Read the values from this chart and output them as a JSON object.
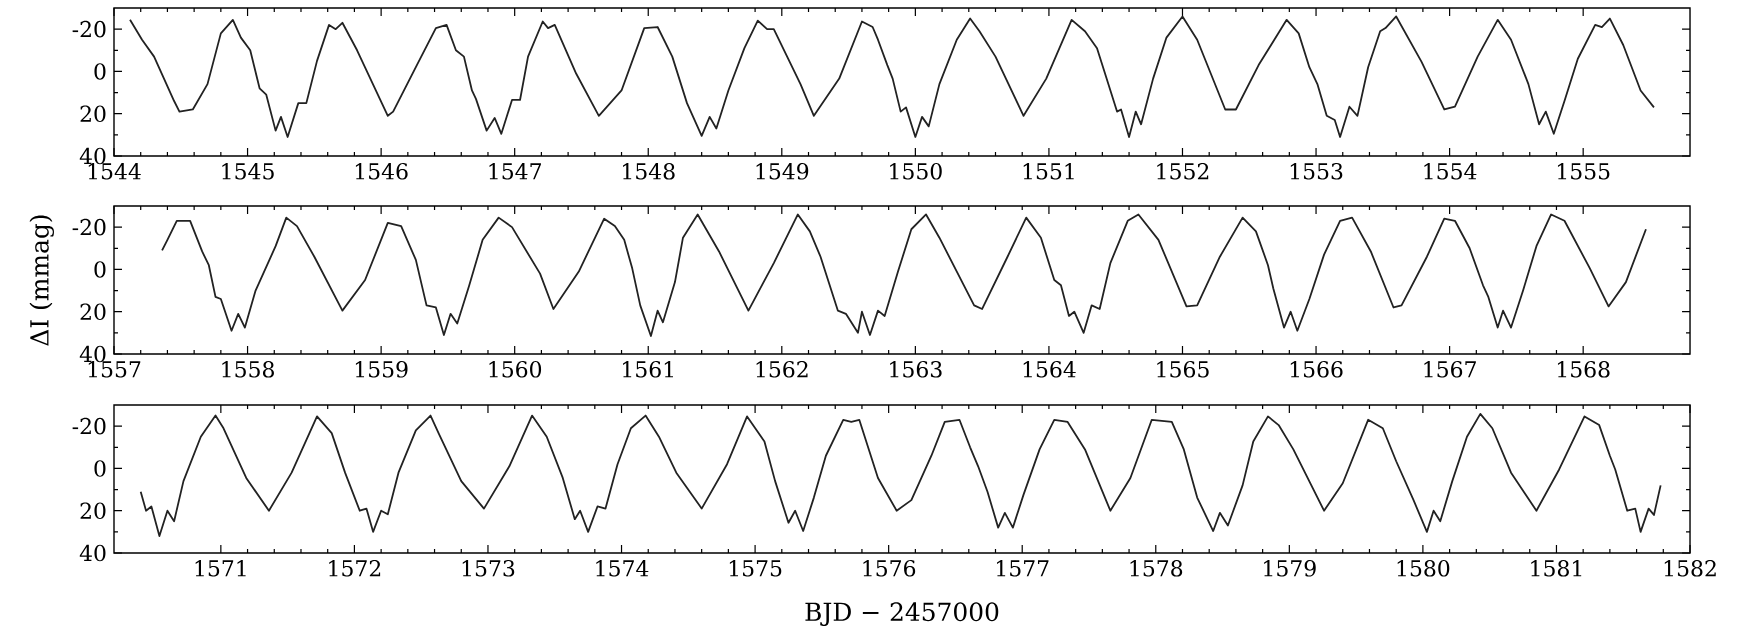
{
  "chart_data": [
    {
      "type": "line",
      "marker": "none",
      "line_style": "solid",
      "xlim": [
        1544,
        1555.8
      ],
      "ylim": [
        40,
        -30
      ],
      "xticks": [
        1544,
        1545,
        1546,
        1547,
        1548,
        1549,
        1550,
        1551,
        1552,
        1553,
        1554,
        1555
      ],
      "yticks": [
        -20,
        0,
        20,
        40
      ],
      "x": [
        1544.12,
        1544.21,
        1544.3,
        1544.45,
        1544.49,
        1544.59,
        1544.7,
        1544.8,
        1544.89,
        1544.95,
        1545.02,
        1545.09,
        1545.14,
        1545.21,
        1545.25,
        1545.3,
        1545.38,
        1545.44,
        1545.52,
        1545.61,
        1545.66,
        1545.71,
        1545.82,
        1546.05,
        1546.09,
        1546.26,
        1546.41,
        1546.49,
        1546.56,
        1546.62,
        1546.68,
        1546.71,
        1546.79,
        1546.85,
        1546.9,
        1546.98,
        1547.04,
        1547.1,
        1547.21,
        1547.25,
        1547.3,
        1547.46,
        1547.63,
        1547.8,
        1547.97,
        1548.07,
        1548.18,
        1548.29,
        1548.4,
        1548.46,
        1548.51,
        1548.6,
        1548.72,
        1548.82,
        1548.89,
        1548.94,
        1549.14,
        1549.24,
        1549.43,
        1549.6,
        1549.68,
        1549.72,
        1549.79,
        1549.83,
        1549.89,
        1549.93,
        1550.0,
        1550.05,
        1550.1,
        1550.18,
        1550.31,
        1550.41,
        1550.48,
        1550.6,
        1550.81,
        1550.98,
        1551.17,
        1551.27,
        1551.36,
        1551.42,
        1551.51,
        1551.54,
        1551.6,
        1551.65,
        1551.69,
        1551.78,
        1551.88,
        1552.0,
        1552.11,
        1552.32,
        1552.4,
        1552.57,
        1552.78,
        1552.87,
        1552.95,
        1553.01,
        1553.08,
        1553.14,
        1553.18,
        1553.25,
        1553.31,
        1553.39,
        1553.48,
        1553.52,
        1553.6,
        1553.79,
        1553.96,
        1554.04,
        1554.21,
        1554.36,
        1554.46,
        1554.59,
        1554.67,
        1554.72,
        1554.78,
        1554.86,
        1554.96,
        1555.09,
        1555.14,
        1555.2,
        1555.3,
        1555.43,
        1555.53
      ],
      "series": [
        {
          "color": "#222222",
          "values": [
            -24.4,
            -15,
            -7,
            14,
            19,
            18,
            6,
            -18,
            -24.4,
            -16,
            -10,
            8,
            11,
            28,
            21.5,
            31,
            15,
            15,
            -5,
            -22,
            -20,
            -23,
            -10,
            21,
            19,
            -2,
            -20.5,
            -22,
            -10,
            -7,
            9,
            13,
            28,
            22,
            29.5,
            13.5,
            13.5,
            -7,
            -23.6,
            -20.5,
            -22,
            1,
            21,
            9,
            -20.5,
            -21,
            -7,
            15,
            30.5,
            21.5,
            27,
            9,
            -11,
            -24,
            -20,
            -20,
            6,
            21,
            3.4,
            -23.6,
            -21,
            -15,
            -3,
            3.4,
            19,
            17,
            31,
            21.5,
            26,
            6,
            -15,
            -25,
            -19,
            -7,
            21,
            3.4,
            -24.4,
            -19,
            -11,
            1,
            19,
            18,
            31,
            19,
            25,
            3.4,
            -16,
            -26,
            -15,
            18,
            18,
            -3,
            -24.4,
            -18,
            -2,
            6,
            21,
            23,
            31,
            16.7,
            21,
            -2,
            -19,
            -20.5,
            -26,
            -4.5,
            18,
            16.7,
            -7,
            -24.4,
            -15,
            6,
            25,
            19,
            29.5,
            14,
            -6,
            -22,
            -21,
            -25,
            -12.5,
            9,
            17
          ]
        }
      ]
    },
    {
      "type": "line",
      "marker": "none",
      "line_style": "solid",
      "xlim": [
        1557,
        1568.8
      ],
      "ylim": [
        40,
        -30
      ],
      "ylabel": "ΔI (mmag)",
      "xticks": [
        1557,
        1558,
        1559,
        1560,
        1561,
        1562,
        1563,
        1564,
        1565,
        1566,
        1567,
        1568
      ],
      "yticks": [
        -20,
        0,
        20,
        40
      ],
      "x": [
        1557.36,
        1557.4,
        1557.47,
        1557.57,
        1557.66,
        1557.71,
        1557.76,
        1557.8,
        1557.88,
        1557.93,
        1557.98,
        1558.06,
        1558.21,
        1558.29,
        1558.37,
        1558.5,
        1558.71,
        1558.88,
        1559.05,
        1559.15,
        1559.26,
        1559.34,
        1559.41,
        1559.47,
        1559.52,
        1559.57,
        1559.66,
        1559.76,
        1559.88,
        1559.98,
        1560.19,
        1560.29,
        1560.48,
        1560.67,
        1560.75,
        1560.82,
        1560.88,
        1560.94,
        1561.02,
        1561.07,
        1561.11,
        1561.2,
        1561.26,
        1561.37,
        1561.53,
        1561.75,
        1561.94,
        1562.12,
        1562.21,
        1562.29,
        1562.42,
        1562.48,
        1562.57,
        1562.6,
        1562.66,
        1562.72,
        1562.77,
        1562.87,
        1562.97,
        1563.08,
        1563.18,
        1563.44,
        1563.5,
        1563.69,
        1563.83,
        1563.94,
        1564.04,
        1564.09,
        1564.15,
        1564.19,
        1564.26,
        1564.32,
        1564.38,
        1564.46,
        1564.59,
        1564.67,
        1564.82,
        1565.03,
        1565.11,
        1565.28,
        1565.45,
        1565.55,
        1565.64,
        1565.68,
        1565.76,
        1565.81,
        1565.86,
        1565.95,
        1566.06,
        1566.18,
        1566.27,
        1566.41,
        1566.58,
        1566.64,
        1566.83,
        1566.96,
        1567.04,
        1567.15,
        1567.25,
        1567.29,
        1567.36,
        1567.4,
        1567.46,
        1567.55,
        1567.65,
        1567.76,
        1567.86,
        1568.05,
        1568.19,
        1568.32,
        1568.47
      ],
      "series": [
        {
          "color": "#222222",
          "values": [
            -9,
            -14,
            -23,
            -23,
            -8.5,
            -2,
            13,
            14,
            29,
            21,
            27.5,
            10,
            -11,
            -24.5,
            -20.5,
            -6,
            19.5,
            5,
            -22,
            -20.5,
            -4.5,
            17,
            18,
            31,
            21,
            25.6,
            7.5,
            -14,
            -24.5,
            -20,
            2,
            18.7,
            1,
            -24,
            -20.5,
            -14,
            -0.5,
            17,
            31.5,
            19.5,
            25,
            6,
            -15,
            -26,
            -8.5,
            19.5,
            -3,
            -26,
            -18,
            -6,
            19.5,
            21,
            30,
            20,
            31,
            19.5,
            22,
            1,
            -19,
            -26,
            -15,
            17,
            18.7,
            -6,
            -24.5,
            -15,
            5,
            7.5,
            22,
            20,
            30,
            17,
            18.7,
            -3,
            -23,
            -26,
            -14,
            17.5,
            17,
            -6,
            -24.5,
            -18,
            -2,
            9,
            27.5,
            20,
            29,
            14,
            -7,
            -23,
            -24.5,
            -8.5,
            18,
            17,
            -6,
            -24,
            -23,
            -10,
            7.5,
            13,
            27.5,
            19.5,
            27.5,
            10,
            -11,
            -26,
            -23,
            -0.5,
            17.5,
            6,
            -19
          ]
        }
      ]
    },
    {
      "type": "line",
      "marker": "none",
      "line_style": "solid",
      "xlim": [
        1570.2,
        1582
      ],
      "ylim": [
        40,
        -30
      ],
      "xlabel": "BJD − 2457000",
      "xticks": [
        1571,
        1572,
        1573,
        1574,
        1575,
        1576,
        1577,
        1578,
        1579,
        1580,
        1581,
        1582
      ],
      "yticks": [
        -20,
        0,
        20,
        40
      ],
      "x": [
        1570.4,
        1570.44,
        1570.48,
        1570.54,
        1570.6,
        1570.65,
        1570.72,
        1570.85,
        1570.96,
        1571.02,
        1571.19,
        1571.36,
        1571.53,
        1571.72,
        1571.83,
        1571.93,
        1572.04,
        1572.09,
        1572.14,
        1572.2,
        1572.25,
        1572.33,
        1572.46,
        1572.57,
        1572.63,
        1572.8,
        1572.97,
        1573.16,
        1573.33,
        1573.44,
        1573.56,
        1573.65,
        1573.69,
        1573.75,
        1573.82,
        1573.88,
        1573.97,
        1574.07,
        1574.18,
        1574.28,
        1574.41,
        1574.6,
        1574.79,
        1574.94,
        1575.07,
        1575.15,
        1575.25,
        1575.3,
        1575.36,
        1575.44,
        1575.53,
        1575.66,
        1575.72,
        1575.78,
        1575.92,
        1576.06,
        1576.17,
        1576.32,
        1576.42,
        1576.53,
        1576.61,
        1576.67,
        1576.74,
        1576.82,
        1576.87,
        1576.93,
        1577.01,
        1577.13,
        1577.24,
        1577.34,
        1577.47,
        1577.66,
        1577.81,
        1577.97,
        1578.12,
        1578.21,
        1578.31,
        1578.43,
        1578.48,
        1578.54,
        1578.65,
        1578.73,
        1578.84,
        1578.92,
        1579.03,
        1579.26,
        1579.4,
        1579.59,
        1579.7,
        1579.8,
        1579.93,
        1580.03,
        1580.08,
        1580.13,
        1580.22,
        1580.33,
        1580.43,
        1580.52,
        1580.66,
        1580.85,
        1581.02,
        1581.21,
        1581.32,
        1581.4,
        1581.44,
        1581.53,
        1581.59,
        1581.63,
        1581.69,
        1581.73,
        1581.78
      ],
      "series": [
        {
          "color": "#222222",
          "values": [
            11,
            20,
            18,
            32,
            20,
            25,
            6,
            -15,
            -25,
            -19,
            4.5,
            20,
            2,
            -24.6,
            -16.7,
            2,
            20,
            19,
            30,
            20,
            21.7,
            2,
            -18,
            -25,
            -16.7,
            6,
            19,
            -1,
            -25,
            -15,
            4.5,
            24,
            20,
            30,
            18,
            19,
            -2,
            -19,
            -25,
            -15,
            2,
            19,
            -2,
            -24.6,
            -12.7,
            6,
            25.7,
            20,
            29.6,
            13.8,
            -6,
            -23,
            -22,
            -23,
            4.5,
            20,
            15,
            -6,
            -22,
            -23,
            -10,
            -1,
            11,
            28,
            21,
            28,
            12.4,
            -9,
            -23,
            -22,
            -9,
            20,
            4.5,
            -23,
            -22,
            -9,
            13.8,
            29.6,
            21,
            27,
            8,
            -12.7,
            -24.6,
            -20.5,
            -9,
            20,
            7,
            -23,
            -19,
            -3.4,
            15,
            30,
            20,
            25,
            6,
            -15,
            -25.8,
            -19,
            2,
            20,
            0.5,
            -24.6,
            -20.5,
            -6,
            0.5,
            20,
            19,
            30,
            19,
            22,
            8
          ]
        }
      ]
    }
  ]
}
